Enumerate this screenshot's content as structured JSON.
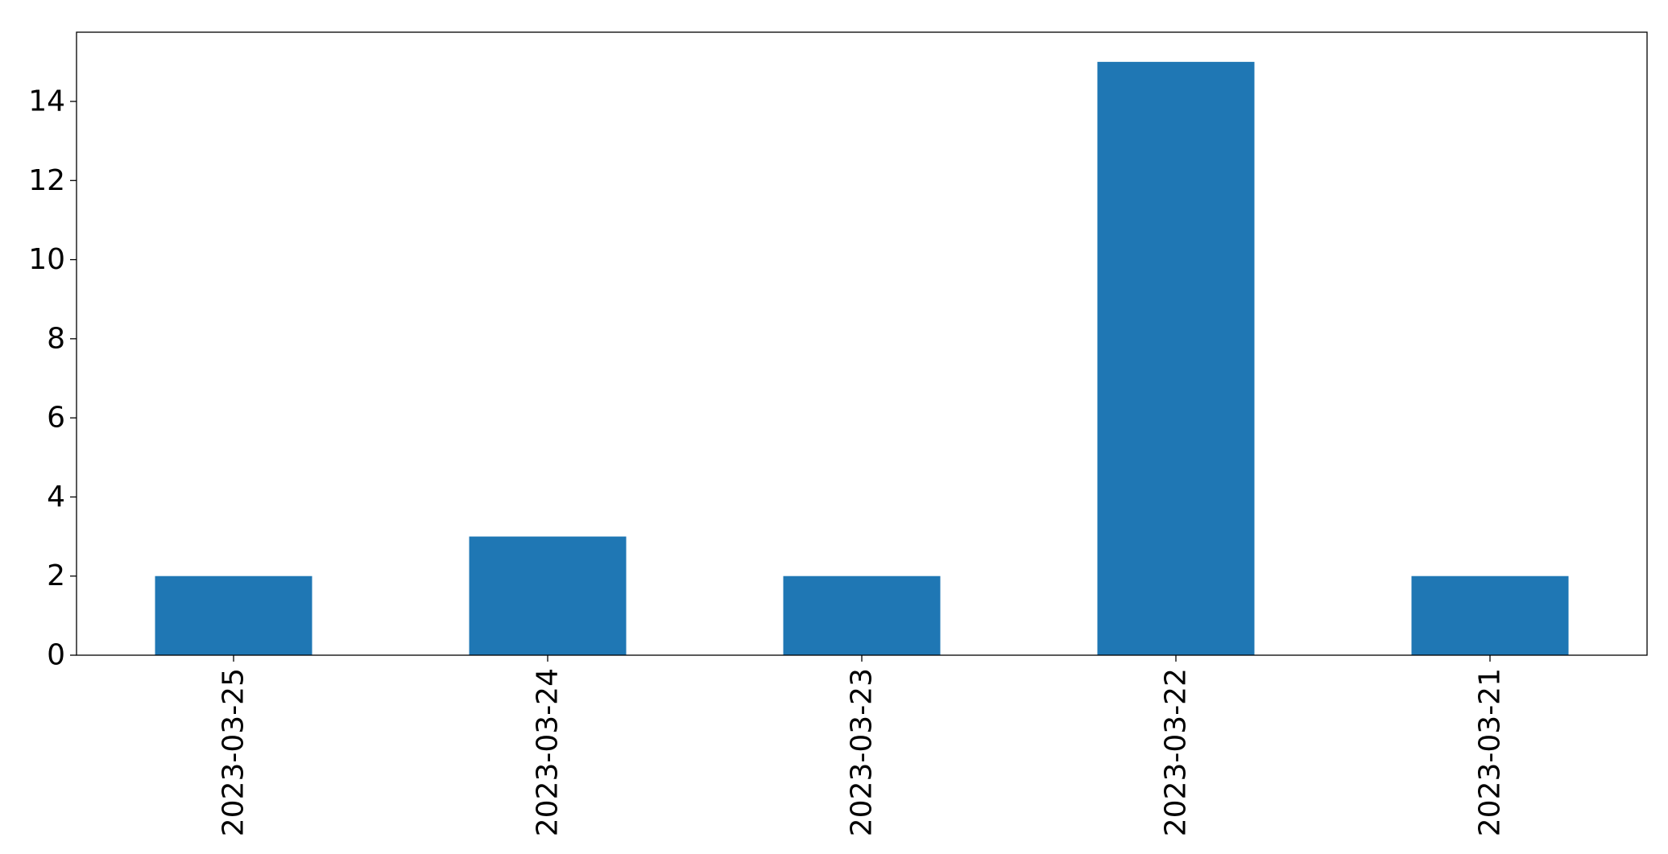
{
  "chart_data": {
    "type": "bar",
    "categories": [
      "2023-03-25",
      "2023-03-24",
      "2023-03-23",
      "2023-03-22",
      "2023-03-21"
    ],
    "values": [
      2,
      3,
      2,
      15,
      2
    ],
    "title": "",
    "xlabel": "",
    "ylabel": "",
    "ylim": [
      0,
      15.75
    ],
    "yticks": [
      0,
      2,
      4,
      6,
      8,
      10,
      12,
      14
    ],
    "bar_color": "#1f77b4",
    "x_tick_rotation": "vertical",
    "grid": false,
    "legend": "none"
  }
}
